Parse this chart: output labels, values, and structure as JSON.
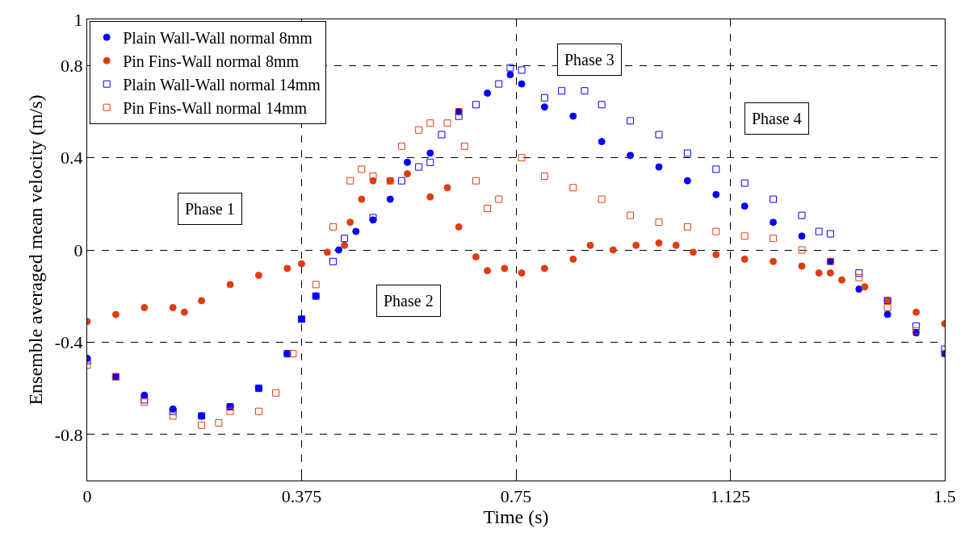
{
  "chart_data": {
    "type": "scatter",
    "xlabel": "Time (s)",
    "ylabel": "Ensemble averaged mean velocity (m/s)",
    "xlim": [
      0,
      1.5
    ],
    "xticks": [
      0,
      0.375,
      0.75,
      1.125,
      1.5
    ],
    "ylim": [
      -1,
      1
    ],
    "yticks": [
      -0.8,
      -0.4,
      0,
      0.4,
      0.8,
      1
    ],
    "grid": true,
    "legend": "top left",
    "annotations": [
      "Phase 1",
      "Phase 2",
      "Phase 3",
      "Phase 4"
    ],
    "series": [
      {
        "name": "Plain Wall-Wall normal 8mm",
        "color": "#0000ff",
        "marker": "circle",
        "x": [
          0,
          0.05,
          0.1,
          0.15,
          0.2,
          0.25,
          0.3,
          0.35,
          0.375,
          0.4,
          0.44,
          0.47,
          0.5,
          0.53,
          0.56,
          0.6,
          0.65,
          0.7,
          0.74,
          0.76,
          0.8,
          0.85,
          0.9,
          0.95,
          1.0,
          1.05,
          1.1,
          1.15,
          1.2,
          1.25,
          1.3,
          1.35,
          1.4,
          1.45,
          1.5
        ],
        "values": [
          -0.47,
          -0.55,
          -0.63,
          -0.69,
          -0.72,
          -0.68,
          -0.6,
          -0.45,
          -0.3,
          -0.2,
          0.0,
          0.08,
          0.13,
          0.22,
          0.38,
          0.42,
          0.6,
          0.68,
          0.76,
          0.72,
          0.62,
          0.58,
          0.47,
          0.41,
          0.36,
          0.3,
          0.24,
          0.19,
          0.12,
          0.06,
          -0.05,
          -0.17,
          -0.28,
          -0.36,
          -0.45
        ]
      },
      {
        "name": "Pin Fins-Wall normal 8mm",
        "color": "#e03c10",
        "marker": "circle",
        "x": [
          0,
          0.05,
          0.1,
          0.15,
          0.17,
          0.2,
          0.25,
          0.3,
          0.35,
          0.375,
          0.42,
          0.45,
          0.46,
          0.48,
          0.5,
          0.53,
          0.56,
          0.6,
          0.63,
          0.65,
          0.68,
          0.7,
          0.73,
          0.76,
          0.8,
          0.85,
          0.88,
          0.92,
          0.96,
          1.0,
          1.03,
          1.06,
          1.1,
          1.15,
          1.2,
          1.25,
          1.28,
          1.3,
          1.32,
          1.36,
          1.4,
          1.45,
          1.5
        ],
        "values": [
          -0.31,
          -0.28,
          -0.25,
          -0.25,
          -0.27,
          -0.22,
          -0.15,
          -0.11,
          -0.08,
          -0.06,
          -0.01,
          0.02,
          0.12,
          0.22,
          0.3,
          0.3,
          0.33,
          0.23,
          0.27,
          0.1,
          -0.03,
          -0.09,
          -0.08,
          -0.1,
          -0.08,
          -0.04,
          0.02,
          0.0,
          0.02,
          0.03,
          0.02,
          -0.01,
          -0.02,
          -0.04,
          -0.05,
          -0.07,
          -0.1,
          -0.1,
          -0.13,
          -0.16,
          -0.22,
          -0.27,
          -0.32
        ]
      },
      {
        "name": "Plain Wall-Wall normal 14mm",
        "color": "#0000ff",
        "marker": "square-open",
        "x": [
          0,
          0.05,
          0.1,
          0.15,
          0.2,
          0.25,
          0.3,
          0.35,
          0.375,
          0.4,
          0.43,
          0.45,
          0.5,
          0.55,
          0.58,
          0.6,
          0.62,
          0.65,
          0.68,
          0.72,
          0.74,
          0.76,
          0.8,
          0.83,
          0.87,
          0.9,
          0.95,
          1.0,
          1.05,
          1.1,
          1.15,
          1.2,
          1.25,
          1.28,
          1.3,
          1.35,
          1.4,
          1.45,
          1.5
        ],
        "values": [
          -0.48,
          -0.55,
          -0.65,
          -0.7,
          -0.72,
          -0.68,
          -0.6,
          -0.45,
          -0.3,
          -0.2,
          -0.05,
          0.05,
          0.14,
          0.3,
          0.36,
          0.38,
          0.5,
          0.58,
          0.63,
          0.72,
          0.79,
          0.78,
          0.66,
          0.69,
          0.69,
          0.63,
          0.56,
          0.5,
          0.42,
          0.35,
          0.29,
          0.22,
          0.15,
          0.08,
          0.07,
          -0.1,
          -0.22,
          -0.33,
          -0.43
        ]
      },
      {
        "name": "Pin Fins-Wall normal 14mm",
        "color": "#e03c10",
        "marker": "square-open",
        "x": [
          0,
          0.05,
          0.1,
          0.15,
          0.2,
          0.23,
          0.25,
          0.3,
          0.33,
          0.36,
          0.4,
          0.43,
          0.46,
          0.48,
          0.5,
          0.53,
          0.55,
          0.58,
          0.6,
          0.63,
          0.65,
          0.66,
          0.68,
          0.7,
          0.72,
          0.76,
          0.8,
          0.85,
          0.9,
          0.95,
          1.0,
          1.05,
          1.1,
          1.15,
          1.2,
          1.25,
          1.3,
          1.35,
          1.4,
          1.45,
          1.5
        ],
        "values": [
          -0.5,
          -0.55,
          -0.66,
          -0.72,
          -0.76,
          -0.75,
          -0.7,
          -0.7,
          -0.62,
          -0.45,
          -0.15,
          0.1,
          0.3,
          0.35,
          0.32,
          0.3,
          0.45,
          0.52,
          0.55,
          0.55,
          0.6,
          0.45,
          0.3,
          0.18,
          0.22,
          0.4,
          0.32,
          0.27,
          0.22,
          0.15,
          0.12,
          0.1,
          0.08,
          0.06,
          0.05,
          0.0,
          -0.05,
          -0.12,
          -0.25,
          -0.35,
          -0.45
        ]
      }
    ]
  }
}
